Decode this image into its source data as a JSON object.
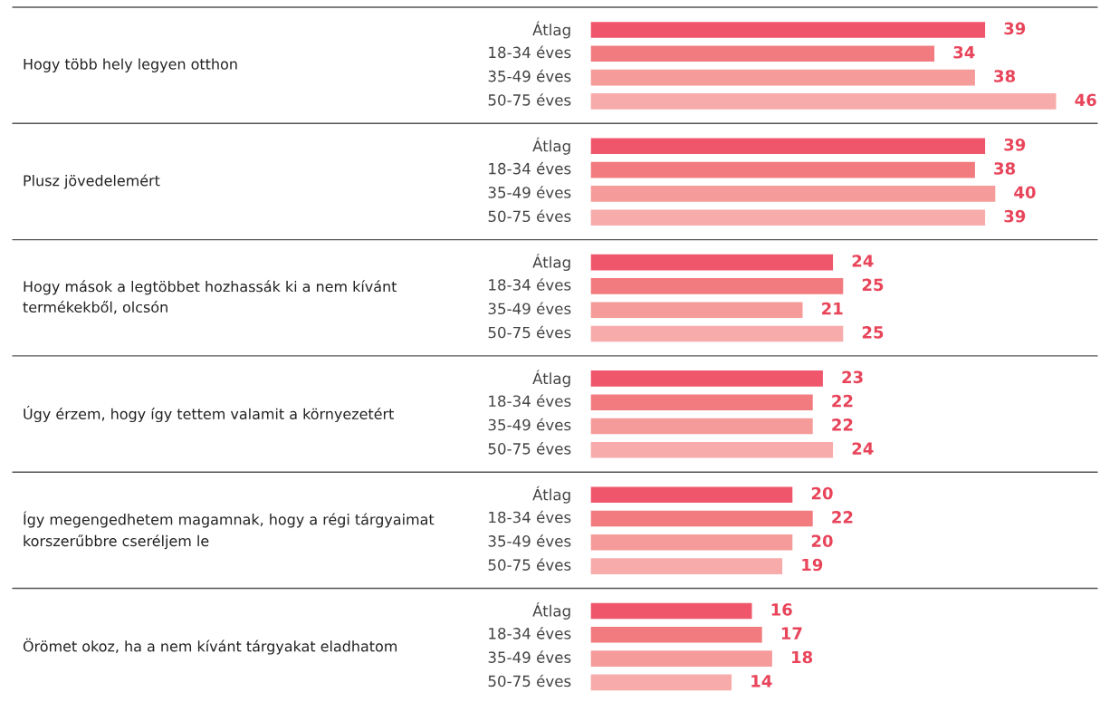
{
  "chart_data": {
    "type": "bar",
    "orientation": "horizontal",
    "categories": [
      "Hogy több hely legyen otthon",
      "Plusz jövedelemért",
      "Hogy mások a legtöbbet hozhassák ki a nem kívánt\ntermékekből, olcsón",
      "Úgy érzem, hogy így tettem valamit a környezetért",
      "Így megengedhetem magamnak, hogy a régi tárgyaimat\nkorszerűbbre cseréljem le",
      "Örömet okoz, ha a nem kívánt tárgyakat eladhatom"
    ],
    "series": [
      {
        "name": "Átlag",
        "color": "#f0566b",
        "values": [
          39,
          39,
          24,
          23,
          20,
          16
        ]
      },
      {
        "name": "18-34 éves",
        "color": "#f27b7f",
        "values": [
          34,
          38,
          25,
          22,
          22,
          17
        ]
      },
      {
        "name": "35-49 éves",
        "color": "#f59b99",
        "values": [
          38,
          40,
          21,
          22,
          20,
          18
        ]
      },
      {
        "name": "50-75 éves",
        "color": "#f7abaa",
        "values": [
          46,
          39,
          25,
          24,
          19,
          14
        ]
      }
    ],
    "data_labels": true,
    "xlim": [
      0,
      50
    ],
    "tick_labels": "y"
  }
}
